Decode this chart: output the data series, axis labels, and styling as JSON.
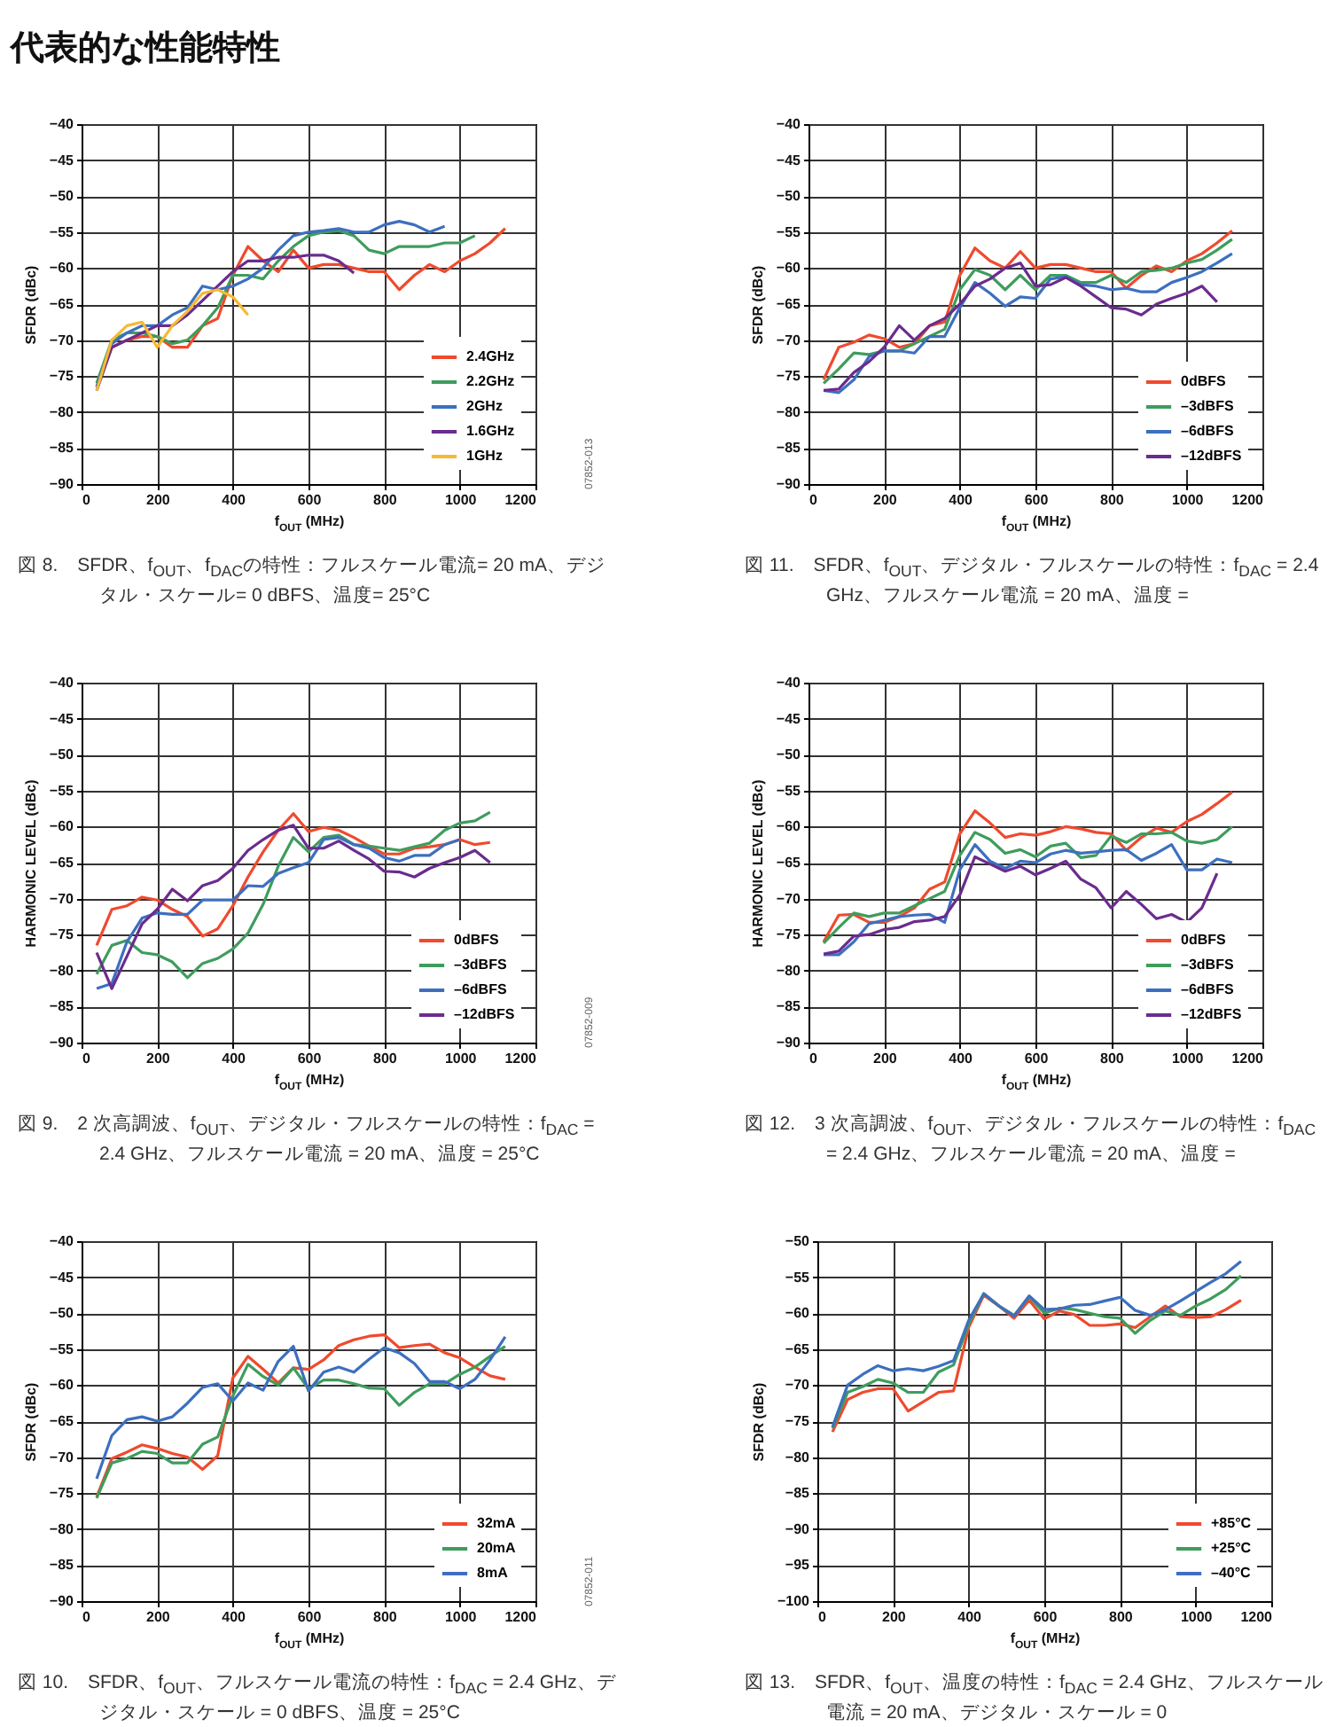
{
  "chart_data": [
    {
      "type": "line",
      "title": "図 8.　SFDR、f$_{OUT}$、f$_{DAC}$の特性：フルスケール電流= 20 mA、デジタル・スケール= 0 dBFS、温度= 25°C",
      "xlabel": "f$_{OUT}$ (MHz)",
      "ylabel": "SFDR (dBc)",
      "annotations": [
        "代表的な性能特性",
        "07852-013"
      ],
      "x": [
        40,
        80,
        120,
        160,
        200,
        240,
        280,
        320,
        360,
        400,
        440,
        480,
        520,
        560,
        600,
        640,
        680,
        720,
        760,
        800,
        840,
        880,
        920,
        960,
        1000,
        1040,
        1080,
        1120
      ],
      "series": [
        {
          "name": "2.4GHz",
          "color": "#ef4a2e",
          "values": [
            -76.5,
            -71,
            -70,
            -69.5,
            -69.5,
            -71,
            -71,
            -68,
            -67,
            -61,
            -57,
            -59,
            -60.5,
            -57.5,
            -60,
            -59.5,
            -59.5,
            -60,
            -60.5,
            -60.5,
            -63,
            -61,
            -59.5,
            -60.5,
            -59,
            -58,
            -56.5,
            -54.5
          ]
        },
        {
          "name": "2.2GHz",
          "color": "#3f9c5d",
          "values": [
            -76,
            -70,
            -69,
            -69,
            -69.5,
            -70.5,
            -70,
            -68,
            -65.5,
            -61,
            -61,
            -61.5,
            -59,
            -57,
            -55.5,
            -55,
            -54.8,
            -55.5,
            -57.5,
            -58,
            -57,
            -57,
            -57,
            -56.5,
            -56.5,
            -55.5,
            null,
            null
          ]
        },
        {
          "name": "2GHz",
          "color": "#3d6fbf",
          "values": [
            -76.5,
            -70.5,
            -69,
            -68,
            -68,
            -66.5,
            -65.5,
            -62.5,
            -63,
            -62.5,
            -61.5,
            -60,
            -57.5,
            -55.5,
            -55,
            -54.8,
            -54.5,
            -55,
            -55,
            -54,
            -53.5,
            -54,
            -55,
            -54.2,
            null,
            null,
            null,
            null
          ]
        },
        {
          "name": "1.6GHz",
          "color": "#6a2c8e",
          "values": [
            -77,
            -71,
            -70,
            -69,
            -68,
            -68,
            -66.5,
            -64.5,
            -62.5,
            -60.5,
            -59,
            -59,
            -58.5,
            -58.5,
            -58.2,
            -58.2,
            -59,
            -60.7,
            null,
            null,
            null,
            null,
            null,
            null,
            null,
            null,
            null,
            null
          ]
        },
        {
          "name": "1GHz",
          "color": "#f6b934",
          "values": [
            -77,
            -70,
            -68,
            -67.5,
            -71,
            -68,
            -66,
            -63.5,
            -63,
            -64,
            -66.5,
            null,
            null,
            null,
            null,
            null,
            null,
            null,
            null,
            null,
            null,
            null,
            null,
            null,
            null,
            null,
            null,
            null
          ]
        }
      ],
      "xlim": [
        0,
        1200
      ],
      "xticks": [
        0,
        200,
        400,
        600,
        800,
        1000,
        1200
      ],
      "ylim": [
        -90,
        -40
      ],
      "yticks": [
        -90,
        -85,
        -80,
        -75,
        -70,
        -65,
        -60,
        -55,
        -50,
        -45,
        -40
      ],
      "grid": true,
      "legend": "bottom right"
    },
    {
      "type": "line",
      "title": "図 11.　SFDR、f$_{OUT}$、デジタル・フルスケールの特性：f$_{DAC}$ = 2.4 GHz、フルスケール電流 = 20 mA、温度 =",
      "xlabel": "f$_{OUT}$ (MHz)",
      "ylabel": "SFDR (dBc)",
      "x": [
        40,
        80,
        120,
        160,
        200,
        240,
        280,
        320,
        360,
        400,
        440,
        480,
        520,
        560,
        600,
        640,
        680,
        720,
        760,
        800,
        840,
        880,
        920,
        960,
        1000,
        1040,
        1080,
        1120
      ],
      "series": [
        {
          "name": "0dBFS",
          "color": "#ef4a2e",
          "values": [
            -75.5,
            -71,
            -70.3,
            -69.3,
            -69.8,
            -71,
            -70.5,
            -68,
            -67.5,
            -61,
            -57.2,
            -59,
            -60,
            -57.7,
            -60,
            -59.5,
            -59.5,
            -60,
            -60.5,
            -60.5,
            -62.8,
            -61,
            -59.7,
            -60.5,
            -59,
            -58,
            -56.5,
            -54.8
          ]
        },
        {
          "name": "–3dBFS",
          "color": "#3f9c5d",
          "values": [
            -76,
            -74,
            -71.8,
            -72,
            -71.5,
            -71.5,
            -70.5,
            -69.5,
            -68.5,
            -63,
            -60.2,
            -61,
            -63,
            -61,
            -63,
            -61,
            -61,
            -62,
            -62,
            -61,
            -62,
            -60.5,
            -60.3,
            -60,
            -59.3,
            -58.8,
            -57.5,
            -56
          ]
        },
        {
          "name": "–6dBFS",
          "color": "#3d6fbf",
          "values": [
            -77,
            -77.3,
            -75.5,
            -72.3,
            -71.5,
            -71.5,
            -71.8,
            -69.5,
            -69.5,
            -65.5,
            -62,
            -63.5,
            -65.3,
            -64,
            -64.2,
            -61.5,
            -61.2,
            -62.3,
            -62.5,
            -63,
            -62.8,
            -63.3,
            -63.3,
            -62,
            -61.3,
            -60.5,
            -59.3,
            -58
          ]
        },
        {
          "name": "–12dBFS",
          "color": "#6a2c8e",
          "values": [
            -77,
            -76.8,
            -74.5,
            -73,
            -71,
            -68,
            -70,
            -68,
            -67,
            -65,
            -62.5,
            -61.5,
            -60,
            -59.3,
            -62.5,
            -62.3,
            -61.3,
            -62.5,
            -64,
            -65.5,
            -65.7,
            -66.5,
            -65,
            -64.2,
            -63.5,
            -62.5,
            -64.7,
            null
          ]
        }
      ],
      "xlim": [
        0,
        1200
      ],
      "xticks": [
        0,
        200,
        400,
        600,
        800,
        1000,
        1200
      ],
      "ylim": [
        -90,
        -40
      ],
      "yticks": [
        -90,
        -85,
        -80,
        -75,
        -70,
        -65,
        -60,
        -55,
        -50,
        -45,
        -40
      ],
      "grid": true,
      "legend": "bottom right"
    },
    {
      "type": "line",
      "title": "図 9.　2 次高調波、f$_{OUT}$、デジタル・フルスケールの特性：f$_{DAC}$ = 2.4 GHz、フルスケール電流 = 20 mA、温度 = 25°C",
      "xlabel": "f$_{OUT}$ (MHz)",
      "ylabel": "HARMONIC LEVEL (dBc)",
      "annotations": [
        "07852-009"
      ],
      "x": [
        40,
        80,
        120,
        160,
        200,
        240,
        280,
        320,
        360,
        400,
        440,
        480,
        520,
        560,
        600,
        640,
        680,
        720,
        760,
        800,
        840,
        880,
        920,
        960,
        1000,
        1040,
        1080
      ],
      "series": [
        {
          "name": "0dBFS",
          "color": "#ef4a2e",
          "values": [
            -76.5,
            -71.5,
            -71,
            -69.8,
            -70.2,
            -71.5,
            -72.5,
            -75.2,
            -74.2,
            -71,
            -67,
            -63.5,
            -60.5,
            -58.2,
            -60.7,
            -60.1,
            -60.5,
            -61.5,
            -62.7,
            -63.8,
            -63.8,
            -63,
            -62.8,
            -62.5,
            -61.8,
            -62.5,
            -62.2
          ]
        },
        {
          "name": "–3dBFS",
          "color": "#3f9c5d",
          "values": [
            -80.5,
            -76.5,
            -75.8,
            -77.5,
            -77.8,
            -78.8,
            -81,
            -79,
            -78.3,
            -77,
            -74.8,
            -70.8,
            -65.5,
            -61.5,
            -63.5,
            -61.5,
            -61.2,
            -62.5,
            -62.7,
            -63,
            -63.3,
            -62.8,
            -62.3,
            -60.5,
            -59.5,
            -59.2,
            -58
          ]
        },
        {
          "name": "–6dBFS",
          "color": "#3d6fbf",
          "values": [
            -82.5,
            -81.8,
            -76,
            -72.7,
            -72,
            -72.2,
            -72.2,
            -70.2,
            -70.2,
            -70.2,
            -68.2,
            -68.3,
            -66.5,
            -65.7,
            -65,
            -61.8,
            -61.5,
            -62.5,
            -63,
            -64.3,
            -64.8,
            -64,
            -64,
            -62.5,
            -61.8,
            null,
            null
          ]
        },
        {
          "name": "–12dBFS",
          "color": "#6a2c8e",
          "values": [
            -77.5,
            -82.5,
            -78,
            -73.5,
            -71.5,
            -68.7,
            -70.3,
            -68.2,
            -67.5,
            -65.8,
            -63.3,
            -61.8,
            -60.5,
            -59.8,
            -63,
            -63,
            -62,
            -63.3,
            -64.5,
            -66.2,
            -66.3,
            -67,
            -65.8,
            -65,
            -64.3,
            -63.3,
            -65
          ]
        }
      ],
      "xlim": [
        0,
        1200
      ],
      "xticks": [
        0,
        200,
        400,
        600,
        800,
        1000,
        1200
      ],
      "ylim": [
        -90,
        -40
      ],
      "yticks": [
        -90,
        -85,
        -80,
        -75,
        -70,
        -65,
        -60,
        -55,
        -50,
        -45,
        -40
      ],
      "grid": true,
      "legend": "bottom right"
    },
    {
      "type": "line",
      "title": "図 12.　3 次高調波、f$_{OUT}$、デジタル・フルスケールの特性：f$_{DAC}$ = 2.4 GHz、フルスケール電流 = 20 mA、温度 =",
      "xlabel": "f$_{OUT}$ (MHz)",
      "ylabel": "HARMONIC LEVEL (dBc)",
      "x": [
        40,
        80,
        120,
        160,
        200,
        240,
        280,
        320,
        360,
        400,
        440,
        480,
        520,
        560,
        600,
        640,
        680,
        720,
        760,
        800,
        840,
        880,
        920,
        960,
        1000,
        1040,
        1080,
        1120
      ],
      "series": [
        {
          "name": "0dBFS",
          "color": "#ef4a2e",
          "values": [
            -76,
            -72.3,
            -72.2,
            -73.3,
            -73.3,
            -72.5,
            -71.3,
            -68.7,
            -67.7,
            -61,
            -57.8,
            -59.5,
            -61.5,
            -61,
            -61.2,
            -60.7,
            -60,
            -60.3,
            -60.8,
            -61,
            -63.3,
            -61.5,
            -60.2,
            -60.8,
            -59.3,
            -58.3,
            -56.8,
            -55.2
          ]
        },
        {
          "name": "–3dBFS",
          "color": "#3f9c5d",
          "values": [
            -76.2,
            -74,
            -72,
            -72.5,
            -72,
            -72,
            -71,
            -70,
            -69,
            -64,
            -60.8,
            -61.8,
            -63.7,
            -63.2,
            -64.2,
            -62.7,
            -62.3,
            -64.3,
            -64,
            -61.3,
            -62.2,
            -61,
            -61,
            -60.8,
            -62,
            -62.3,
            -61.8,
            -60
          ]
        },
        {
          "name": "–6dBFS",
          "color": "#3d6fbf",
          "values": [
            -77.8,
            -77.8,
            -76,
            -73.5,
            -73,
            -72.5,
            -72.3,
            -72.2,
            -73.3,
            -66,
            -62.5,
            -64.8,
            -65.8,
            -64.8,
            -65,
            -63.8,
            -63.3,
            -63.7,
            -63.5,
            -63.3,
            -63.2,
            -64.7,
            -63.7,
            -62.5,
            -66,
            -66,
            -64.5,
            -65
          ]
        },
        {
          "name": "–12dBFS",
          "color": "#6a2c8e",
          "values": [
            -77.7,
            -77.3,
            -75.2,
            -75,
            -74.3,
            -74,
            -73.2,
            -73,
            -72.5,
            -69.5,
            -64.2,
            -65.2,
            -66.2,
            -65.5,
            -66.7,
            -65.8,
            -64.8,
            -67.3,
            -68.5,
            -71.3,
            -69,
            -70.8,
            -72.8,
            -72.2,
            -73.3,
            -71.3,
            -66.5,
            null
          ]
        }
      ],
      "xlim": [
        0,
        1200
      ],
      "xticks": [
        0,
        200,
        400,
        600,
        800,
        1000,
        1200
      ],
      "ylim": [
        -90,
        -40
      ],
      "yticks": [
        -90,
        -85,
        -80,
        -75,
        -70,
        -65,
        -60,
        -55,
        -50,
        -45,
        -40
      ],
      "grid": true,
      "legend": "bottom right"
    },
    {
      "type": "line",
      "title": "図 10.　SFDR、f$_{OUT}$、フルスケール電流の特性：f$_{DAC}$ = 2.4 GHz、デジタル・スケール = 0 dBFS、温度 = 25°C",
      "xlabel": "f$_{OUT}$ (MHz)",
      "ylabel": "SFDR (dBc)",
      "annotations": [
        "07852-011"
      ],
      "x": [
        40,
        80,
        120,
        160,
        200,
        240,
        280,
        320,
        360,
        400,
        440,
        480,
        520,
        560,
        600,
        640,
        680,
        720,
        760,
        800,
        840,
        880,
        920,
        960,
        1000,
        1040,
        1080,
        1120
      ],
      "series": [
        {
          "name": "32mA",
          "color": "#ef4a2e",
          "values": [
            -75.5,
            -70.2,
            -69.3,
            -68.3,
            -68.8,
            -69.5,
            -70,
            -71.7,
            -69.8,
            -59,
            -56,
            -57.8,
            -59.7,
            -57.6,
            -57.8,
            -56.5,
            -54.5,
            -53.7,
            -53.2,
            -53,
            -54.8,
            -54.5,
            -54.3,
            -55.5,
            -56.2,
            -57.5,
            -58.7,
            -59.2
          ]
        },
        {
          "name": "20mA",
          "color": "#3f9c5d",
          "values": [
            -75.7,
            -70.8,
            -70.2,
            -69.2,
            -69.5,
            -70.8,
            -70.8,
            -68.2,
            -67.2,
            -61.5,
            -57.1,
            -58.8,
            -60,
            -57.6,
            -60.5,
            -59.3,
            -59.3,
            -59.8,
            -60.4,
            -60.5,
            -62.8,
            -61,
            -59.8,
            -59.8,
            -58.5,
            -57.5,
            -56,
            -54.6
          ]
        },
        {
          "name": "8mA",
          "color": "#3d6fbf",
          "values": [
            -73,
            -67,
            -64.8,
            -64.4,
            -65,
            -64.4,
            -62.5,
            -60.3,
            -59.8,
            -62.2,
            -59.7,
            -60.7,
            -56.7,
            -54.6,
            -60.8,
            -58.2,
            -57.5,
            -58.2,
            -56.4,
            -54.8,
            -55.5,
            -57,
            -59.5,
            -59.5,
            -60.5,
            -59.2,
            -56.5,
            -53.3
          ]
        }
      ],
      "xlim": [
        0,
        1200
      ],
      "xticks": [
        0,
        200,
        400,
        600,
        800,
        1000,
        1200
      ],
      "ylim": [
        -90,
        -40
      ],
      "yticks": [
        -90,
        -85,
        -80,
        -75,
        -70,
        -65,
        -60,
        -55,
        -50,
        -45,
        -40
      ],
      "grid": true,
      "legend": "bottom right"
    },
    {
      "type": "line",
      "title": "図 13.　SFDR、f$_{OUT}$、温度の特性：f$_{DAC}$ = 2.4 GHz、フルスケール電流 = 20 mA、デジタル・スケール = 0",
      "xlabel": "f$_{OUT}$ (MHz)",
      "ylabel": "SFDR (dBc)",
      "x": [
        40,
        80,
        120,
        160,
        200,
        240,
        280,
        320,
        360,
        400,
        440,
        480,
        520,
        560,
        600,
        640,
        680,
        720,
        760,
        800,
        840,
        880,
        920,
        960,
        1000,
        1040,
        1080,
        1120
      ],
      "series": [
        {
          "name": "+85°C",
          "color": "#ef4a2e",
          "values": [
            -76.5,
            -72,
            -71,
            -70.5,
            -70.5,
            -73.6,
            -72.3,
            -71,
            -70.8,
            -62,
            -57.5,
            -59,
            -60.7,
            -58.2,
            -60.8,
            -59.7,
            -60.2,
            -61.7,
            -61.7,
            -61.5,
            -62,
            -60.5,
            -59,
            -60.5,
            -60.6,
            -60.5,
            -59.5,
            -58.2
          ]
        },
        {
          "name": "+25°C",
          "color": "#3f9c5d",
          "values": [
            -76,
            -71,
            -70.2,
            -69.2,
            -69.7,
            -71,
            -71,
            -68.2,
            -67.2,
            -61.5,
            -57.3,
            -59,
            -60.3,
            -57.7,
            -60,
            -59.3,
            -59.5,
            -60,
            -60.5,
            -60.7,
            -62.8,
            -61,
            -59.7,
            -60.3,
            -59,
            -58,
            -56.7,
            -54.8
          ]
        },
        {
          "name": "–40°C",
          "color": "#3d6fbf",
          "values": [
            -75.8,
            -70,
            -68.5,
            -67.3,
            -68,
            -67.7,
            -68,
            -67.4,
            -66.6,
            -61,
            -57.3,
            -59,
            -60.4,
            -57.6,
            -59.5,
            -59.4,
            -58.9,
            -58.8,
            -58.3,
            -57.8,
            -59.6,
            -60.3,
            -59.5,
            -58.3,
            -57,
            -55.7,
            -54.5,
            -52.8
          ]
        }
      ],
      "xlim": [
        0,
        1200
      ],
      "xticks": [
        0,
        200,
        400,
        600,
        800,
        1000,
        1200
      ],
      "ylim": [
        -100,
        -50
      ],
      "yticks": [
        -100,
        -95,
        -90,
        -85,
        -80,
        -75,
        -70,
        -65,
        -60,
        -55,
        -50
      ],
      "grid": true,
      "legend": "bottom right"
    }
  ]
}
